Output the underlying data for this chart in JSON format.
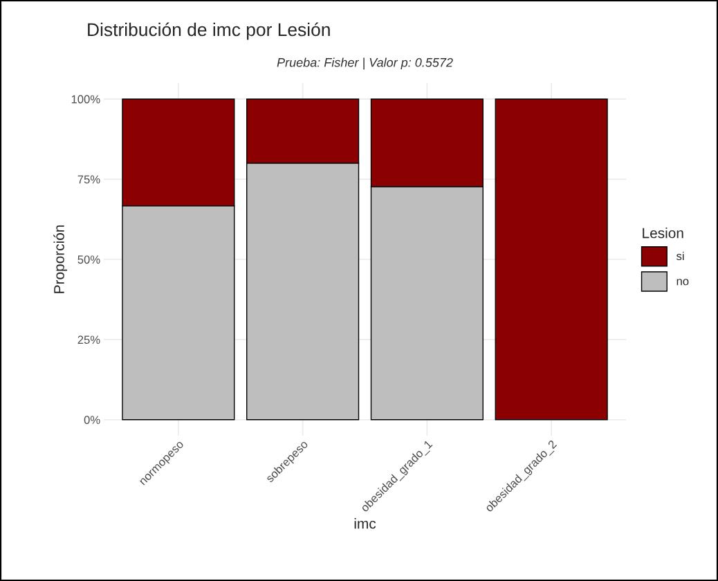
{
  "chart_data": {
    "type": "bar",
    "title": "Distribución de imc por Lesión",
    "subtitle": "Prueba: Fisher | Valor p: 0.5572",
    "xlabel": "imc",
    "ylabel": "Proporción",
    "legend_title": "Lesion",
    "categories": [
      "normopeso",
      "sobrepeso",
      "obesidad_grado_1",
      "obesidad_grado_2"
    ],
    "stacked": true,
    "series": [
      {
        "name": "no",
        "color": "#bebebe",
        "values": [
          66.7,
          80,
          72.7,
          0
        ]
      },
      {
        "name": "si",
        "color": "#8b0000",
        "values": [
          33.3,
          20,
          27.3,
          100
        ]
      }
    ],
    "ylim": [
      -5,
      105
    ],
    "yticks": [
      {
        "value": 0,
        "label": "0%"
      },
      {
        "value": 25,
        "label": "25%"
      },
      {
        "value": 50,
        "label": "50%"
      },
      {
        "value": 75,
        "label": "75%"
      },
      {
        "value": 100,
        "label": "100%"
      }
    ],
    "grid": true,
    "legend": "right"
  }
}
